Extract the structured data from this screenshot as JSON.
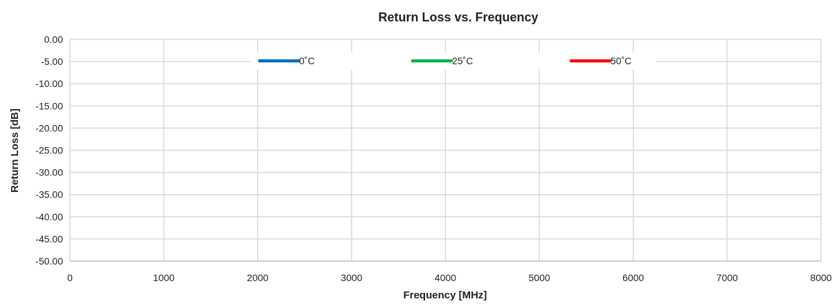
{
  "chart_data": {
    "type": "line",
    "title": "Return Loss vs. Frequency",
    "xlabel": "Frequency [MHz]",
    "ylabel": "Return Loss [dB]",
    "xlim": [
      0,
      8000
    ],
    "ylim": [
      -50,
      0
    ],
    "x_ticks": [
      0,
      1000,
      2000,
      3000,
      4000,
      5000,
      6000,
      7000,
      8000
    ],
    "y_ticks": [
      0,
      -5,
      -10,
      -15,
      -20,
      -25,
      -30,
      -35,
      -40,
      -45,
      -50
    ],
    "y_tick_labels": [
      "0.00",
      "-5.00",
      "-10.00",
      "-15.00",
      "-20.00",
      "-25.00",
      "-30.00",
      "-35.00",
      "-40.00",
      "-45.00",
      "-50.00"
    ],
    "grid": true,
    "legend_position": "top-inside",
    "series": [
      {
        "name": "0˚C",
        "color": "#0070C0",
        "x": [],
        "y": []
      },
      {
        "name": "25˚C",
        "color": "#00B050",
        "x": [],
        "y": []
      },
      {
        "name": "50˚C",
        "color": "#FF0000",
        "x": [],
        "y": []
      }
    ]
  }
}
